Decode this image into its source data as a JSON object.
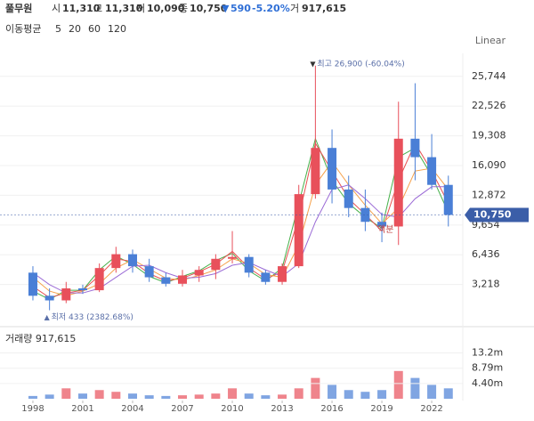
{
  "chart_data": {
    "type": "candlestick",
    "title": "풀무원",
    "header": [
      {
        "label": "시",
        "value": "11,310"
      },
      {
        "label": "고",
        "value": "11,310"
      },
      {
        "label": "저",
        "value": "10,090"
      },
      {
        "label": "종",
        "value": "10,750"
      }
    ],
    "change": "590",
    "change_pct": "-5.20%",
    "volume_header": {
      "label": "거",
      "value": "917,615"
    },
    "ma_label": "이동평균",
    "scale_label": "Linear",
    "x": [
      1998,
      1999,
      2000,
      2001,
      2002,
      2003,
      2004,
      2005,
      2006,
      2007,
      2008,
      2009,
      2010,
      2011,
      2012,
      2013,
      2014,
      2015,
      2016,
      2017,
      2018,
      2019,
      2020,
      2021,
      2022,
      2023
    ],
    "open": [
      4500,
      2000,
      1500,
      2800,
      2600,
      5000,
      6500,
      5200,
      4000,
      3300,
      4200,
      4800,
      6000,
      6200,
      4500,
      3500,
      5200,
      13000,
      18000,
      13500,
      11500,
      10000,
      9500,
      19000,
      17000,
      14000
    ],
    "high": [
      5200,
      2800,
      3500,
      3200,
      5500,
      7300,
      7000,
      6000,
      4500,
      4800,
      5200,
      6500,
      9000,
      6500,
      4800,
      5500,
      14000,
      26900,
      20000,
      15000,
      13500,
      11000,
      23000,
      25000,
      19500,
      15000
    ],
    "low": [
      1500,
      433,
      1200,
      2200,
      2400,
      4500,
      4500,
      3500,
      3000,
      3000,
      3500,
      3800,
      5500,
      4000,
      3200,
      3200,
      5000,
      12500,
      12000,
      10500,
      9000,
      7800,
      7500,
      14500,
      13500,
      9500
    ],
    "close": [
      2000,
      1500,
      2800,
      2600,
      5000,
      6500,
      5200,
      4000,
      3300,
      4200,
      4800,
      6000,
      6200,
      4500,
      3500,
      5200,
      13000,
      18000,
      13500,
      11500,
      10000,
      9500,
      19000,
      17000,
      14000,
      10750
    ],
    "up_color": "#e8505b",
    "down_color": "#4a7fd6",
    "series": [
      {
        "name": "5",
        "color": "#46b04a",
        "values": [
          2500,
          1600,
          2600,
          2600,
          4800,
          6300,
          5400,
          4100,
          3400,
          4100,
          4700,
          5800,
          6600,
          4700,
          3600,
          5000,
          12000,
          19000,
          14500,
          12000,
          10500,
          9300,
          17000,
          18000,
          15000,
          11000
        ]
      },
      {
        "name": "20",
        "color": "#e85050",
        "values": [
          3000,
          1800,
          2300,
          2600,
          4200,
          6000,
          5700,
          4400,
          3600,
          3900,
          4600,
          5400,
          6800,
          5000,
          3800,
          4600,
          10500,
          18500,
          15500,
          12500,
          10800,
          9000,
          14500,
          18500,
          15500,
          12000
        ]
      },
      {
        "name": "60",
        "color": "#f5a04a",
        "values": [
          4000,
          2500,
          2000,
          2500,
          3300,
          5000,
          5900,
          4900,
          3900,
          3700,
          4200,
          4800,
          6000,
          5500,
          4300,
          4000,
          7500,
          14000,
          16500,
          14000,
          11800,
          9800,
          11500,
          15500,
          15800,
          13500
        ]
      },
      {
        "name": "120",
        "color": "#9b6bd6",
        "values": [
          4500,
          3200,
          2300,
          2300,
          2800,
          4000,
          5200,
          5300,
          4500,
          3900,
          4000,
          4400,
          5300,
          5600,
          4800,
          4100,
          5500,
          10000,
          13500,
          14000,
          12500,
          10800,
          10500,
          12500,
          13800,
          13800
        ]
      }
    ],
    "xlim": [
      1996.02,
      2023.87
    ],
    "xticks": [
      1998,
      2001,
      2004,
      2007,
      2010,
      2013,
      2016,
      2019,
      2022
    ],
    "ylim": [
      -1150,
      28230
    ],
    "yticks": [
      {
        "value": 3218,
        "label": "3,218"
      },
      {
        "value": 6436,
        "label": "6,436"
      },
      {
        "value": 9654,
        "label": "9,654"
      },
      {
        "value": 12872,
        "label": "12,872"
      },
      {
        "value": 16090,
        "label": "16,090"
      },
      {
        "value": 19308,
        "label": "19,308"
      },
      {
        "value": 22526,
        "label": "22,526"
      },
      {
        "value": 25744,
        "label": "25,744"
      }
    ],
    "grid": true,
    "last_price": {
      "value": 10750,
      "label": "10,750"
    },
    "high_note": {
      "value": 26900,
      "text": "최고 26,900 (-60.04%)"
    },
    "low_note": {
      "value": 433,
      "text": "최저 433 (2382.68%)"
    },
    "split_note": "액분",
    "volume": {
      "title": "거래량 917,615",
      "values": [
        800000,
        1200000,
        3000000,
        1500000,
        2500000,
        2000000,
        1500000,
        1000000,
        800000,
        1000000,
        1200000,
        1500000,
        3000000,
        1500000,
        1000000,
        1200000,
        3000000,
        6000000,
        4000000,
        2500000,
        2000000,
        2500000,
        8000000,
        6000000,
        4000000,
        3000000
      ],
      "ylim": [
        0,
        19500000
      ],
      "yticks": [
        {
          "value": 4400000,
          "label": "4.40m"
        },
        {
          "value": 8790000,
          "label": "8.79m"
        },
        {
          "value": 13200000,
          "label": "13.2m"
        }
      ]
    }
  }
}
